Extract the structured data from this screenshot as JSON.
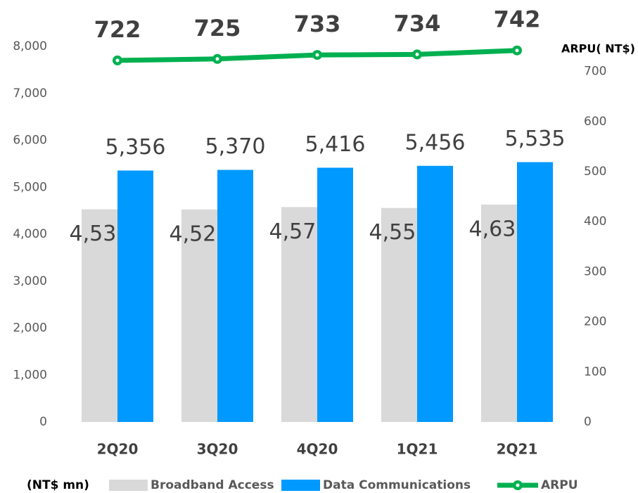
{
  "chart_data": {
    "type": "bar",
    "categories": [
      "2Q20",
      "3Q20",
      "4Q20",
      "1Q21",
      "2Q21"
    ],
    "series": [
      {
        "name": "Broadband Access",
        "color": "#d9d9d9",
        "values": [
          4530,
          4528,
          4578,
          4559,
          4631
        ],
        "value_labels": [
          "4,530",
          "4,528",
          "4,578",
          "4,559",
          "4,631"
        ]
      },
      {
        "name": "Data Communications",
        "color": "#0099ff",
        "values": [
          5356,
          5370,
          5416,
          5456,
          5535
        ],
        "value_labels": [
          "5,356",
          "5,370",
          "5,416",
          "5,456",
          "5,535"
        ]
      },
      {
        "name": "ARPU",
        "color": "#00b050",
        "type": "line",
        "axis": "y2",
        "values": [
          722,
          725,
          733,
          734,
          742
        ]
      }
    ],
    "y_label": "(NT$ mn)",
    "y2_label": "ARPU( NT$)",
    "ylim": [
      0,
      8000
    ],
    "yticks": [
      0,
      {
        "value": 1000,
        "label": "1,000"
      },
      {
        "value": 2000,
        "label": "2,000"
      },
      {
        "value": 3000,
        "label": "3,000"
      },
      {
        "value": 4000,
        "label": "4,000"
      },
      {
        "value": 5000,
        "label": "5,000"
      },
      {
        "value": 6000,
        "label": "6,000"
      },
      {
        "value": 7000,
        "label": "7,000"
      },
      {
        "value": 8000,
        "label": "8,000"
      }
    ],
    "y2lim": [
      0,
      750
    ],
    "y2ticks": [
      0,
      100,
      200,
      300,
      400,
      500,
      600,
      700
    ],
    "grid": false,
    "legend": "bottom"
  }
}
